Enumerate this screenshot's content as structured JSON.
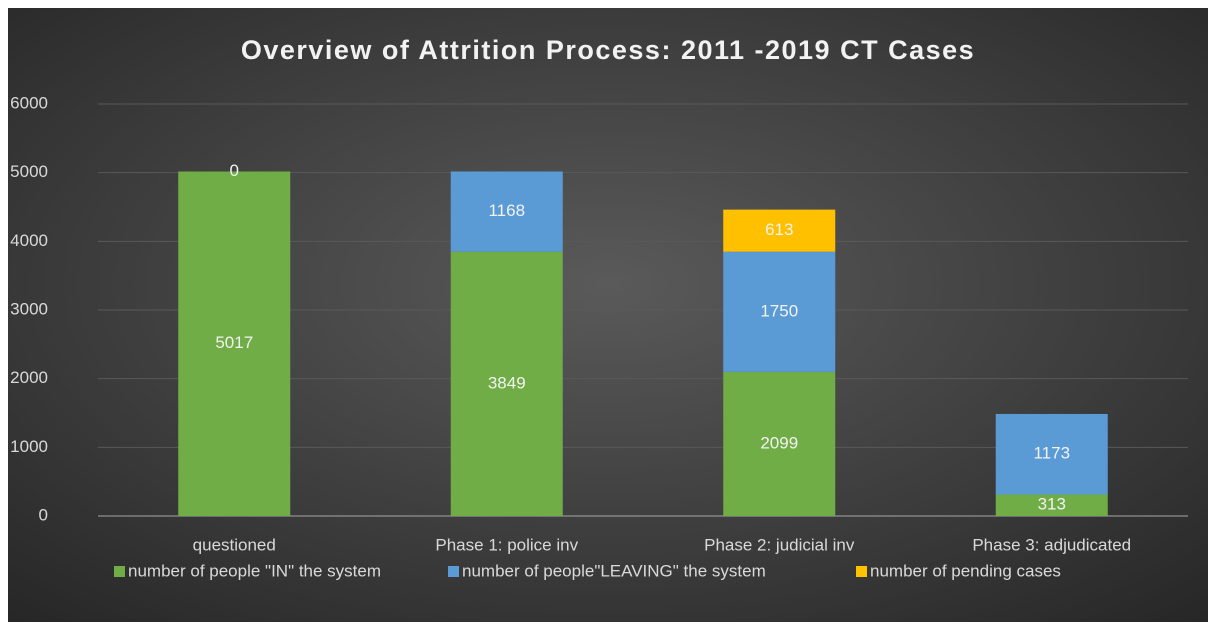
{
  "chart_data": {
    "type": "stacked_bar",
    "title": "Overview of Attrition Process: 2011 -2019 CT Cases",
    "categories": [
      "questioned",
      "Phase 1: police inv",
      "Phase 2: judicial inv",
      "Phase 3: adjudicated"
    ],
    "series": [
      {
        "name": "number of people \"IN\" the system",
        "color": "#70ad47",
        "values": [
          5017,
          3849,
          2099,
          313
        ]
      },
      {
        "name": "number of people\"LEAVING\" the system",
        "color": "#5b9bd5",
        "values": [
          0,
          1168,
          1750,
          1173
        ]
      },
      {
        "name": "number of pending cases",
        "color": "#ffc000",
        "values": [
          null,
          null,
          613,
          null
        ]
      }
    ],
    "ylim": [
      0,
      6000
    ],
    "yticks": [
      0,
      1000,
      2000,
      3000,
      4000,
      5000,
      6000
    ],
    "grid": true,
    "legend": "bottom"
  }
}
